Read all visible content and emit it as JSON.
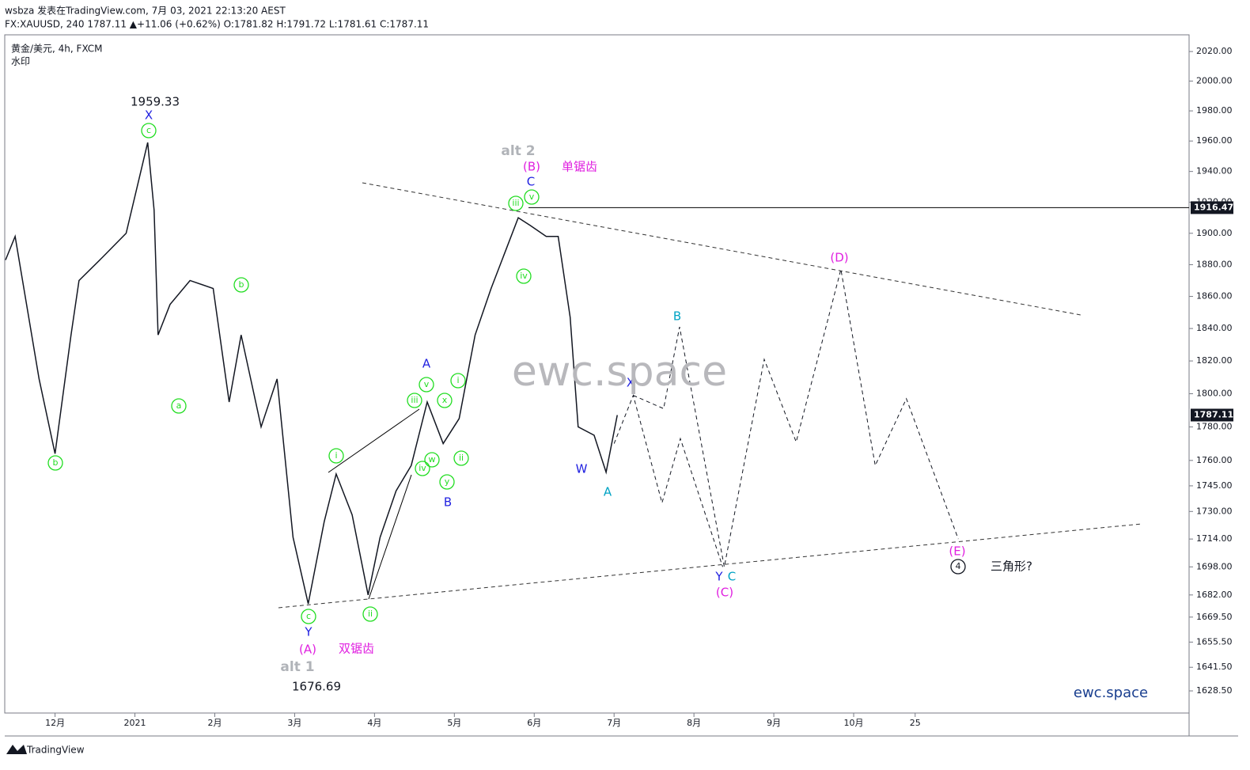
{
  "header": {
    "line1": "wsbza 发表在TradingView.com, 7月 03, 2021 22:13:20 AEST",
    "line2": "FX:XAUUSD, 240 1787.11 ▲+11.06 (+0.62%) O:1781.82 H:1791.72 L:1781.61 C:1787.11",
    "symbol": "黄金/美元, 4h, FXCM",
    "watermark_label": "水印"
  },
  "footer": {
    "brand": "TradingView"
  },
  "chart_data": {
    "type": "line",
    "log_scale": true,
    "grid": false,
    "ylim": [
      1616.4,
      2031.4
    ],
    "yticks": [
      {
        "value": 2020,
        "label": "2020.00"
      },
      {
        "value": 2000,
        "label": "2000.00"
      },
      {
        "value": 1980,
        "label": "1980.00"
      },
      {
        "value": 1960,
        "label": "1960.00"
      },
      {
        "value": 1940,
        "label": "1940.00"
      },
      {
        "value": 1920,
        "label": "1920.00"
      },
      {
        "value": 1900,
        "label": "1900.00"
      },
      {
        "value": 1880,
        "label": "1880.00"
      },
      {
        "value": 1860,
        "label": "1860.00"
      },
      {
        "value": 1840,
        "label": "1840.00"
      },
      {
        "value": 1820,
        "label": "1820.00"
      },
      {
        "value": 1800,
        "label": "1800.00"
      },
      {
        "value": 1780,
        "label": "1780.00"
      },
      {
        "value": 1760,
        "label": "1760.00"
      },
      {
        "value": 1745,
        "label": "1745.00"
      },
      {
        "value": 1730,
        "label": "1730.00"
      },
      {
        "value": 1714,
        "label": "1714.00"
      },
      {
        "value": 1698,
        "label": "1698.00"
      },
      {
        "value": 1682,
        "label": "1682.00"
      },
      {
        "value": 1669.5,
        "label": "1669.50"
      },
      {
        "value": 1655.5,
        "label": "1655.50"
      },
      {
        "value": 1641.5,
        "label": "1641.50"
      },
      {
        "value": 1628.5,
        "label": "1628.50"
      }
    ],
    "xlim": [
      11.37,
      26.2
    ],
    "xticks": [
      {
        "value": 12,
        "label": "12月"
      },
      {
        "value": 13,
        "label": "2021"
      },
      {
        "value": 14,
        "label": "2月"
      },
      {
        "value": 15,
        "label": "3月"
      },
      {
        "value": 16,
        "label": "4月"
      },
      {
        "value": 17,
        "label": "5月"
      },
      {
        "value": 18,
        "label": "6月"
      },
      {
        "value": 19,
        "label": "7月"
      },
      {
        "value": 20,
        "label": "8月"
      },
      {
        "value": 21,
        "label": "9月"
      },
      {
        "value": 22,
        "label": "10月"
      },
      {
        "value": 22.77,
        "label": "25"
      }
    ],
    "series": [
      {
        "color": "#131722",
        "dash": false,
        "x": [
          11.38,
          11.5,
          11.8,
          12.0,
          12.2,
          12.3,
          12.6,
          12.89,
          13.16,
          13.24,
          13.29,
          13.44,
          13.69,
          13.98,
          14.18,
          14.33,
          14.58,
          14.78,
          14.98,
          15.17,
          15.37,
          15.52,
          15.72,
          15.92,
          16.07,
          16.27,
          16.46,
          16.66,
          16.86,
          17.06,
          17.26,
          17.46,
          17.65,
          17.8,
          17.95,
          18.15,
          18.3,
          18.45,
          18.55,
          18.75,
          18.9,
          19.04
        ],
        "values": [
          1883,
          1898,
          1809,
          1764,
          1836,
          1870,
          1885,
          1900,
          1959,
          1915,
          1836,
          1855,
          1870,
          1865,
          1795,
          1836,
          1780,
          1809,
          1715,
          1677,
          1724,
          1752,
          1728,
          1682,
          1715,
          1742,
          1757,
          1795,
          1770,
          1785,
          1836,
          1865,
          1890,
          1910,
          1905,
          1898,
          1898,
          1847,
          1780,
          1775,
          1753,
          1787.11
        ]
      },
      {
        "color": "#131722",
        "dash": true,
        "x": [
          19.0,
          19.24,
          19.6,
          19.83,
          20.36
        ],
        "values": [
          1770,
          1799,
          1735,
          1773,
          1698
        ]
      },
      {
        "color": "#131722",
        "dash": true,
        "x": [
          19.24,
          19.62,
          19.82,
          20.38,
          20.88,
          21.28,
          21.84,
          22.27,
          22.66,
          23.31
        ],
        "values": [
          1799,
          1791,
          1841,
          1698,
          1821,
          1771,
          1877,
          1757,
          1797,
          1714
        ]
      }
    ],
    "hline": {
      "value": 1916.47
    },
    "last_price": 1787.11,
    "annotations": [
      {
        "text": "b",
        "color": "#22dd22",
        "circled": true
      },
      {
        "text": "c",
        "color": "#22dd22",
        "circled": true
      },
      {
        "text": "b",
        "color": "#22dd22",
        "circled": true
      },
      {
        "text": "a",
        "color": "#22dd22",
        "circled": true
      },
      {
        "text": "c",
        "color": "#22dd22",
        "circled": true
      },
      {
        "text": "i",
        "color": "#22dd22",
        "circled": true
      },
      {
        "text": "ii",
        "color": "#22dd22",
        "circled": true
      },
      {
        "text": "iii",
        "color": "#22dd22",
        "circled": true
      },
      {
        "text": "iv",
        "color": "#22dd22",
        "circled": true
      },
      {
        "text": "v",
        "color": "#22dd22",
        "circled": true
      },
      {
        "text": "w",
        "color": "#22dd22",
        "circled": true
      },
      {
        "text": "x",
        "color": "#22dd22",
        "circled": true
      },
      {
        "text": "y",
        "color": "#22dd22",
        "circled": true
      },
      {
        "text": "i",
        "color": "#22dd22",
        "circled": true
      },
      {
        "text": "ii",
        "color": "#22dd22",
        "circled": true
      },
      {
        "text": "iii",
        "color": "#22dd22",
        "circled": true
      },
      {
        "text": "iv",
        "color": "#22dd22",
        "circled": true
      },
      {
        "text": "v",
        "color": "#22dd22",
        "circled": true
      },
      {
        "text": "X",
        "color": "#1f1fe0",
        "circled": false
      },
      {
        "text": "Y",
        "color": "#1f1fe0",
        "circled": false
      },
      {
        "text": "A",
        "color": "#1f1fe0",
        "circled": false
      },
      {
        "text": "B",
        "color": "#1f1fe0",
        "circled": false
      },
      {
        "text": "C",
        "color": "#1f1fe0",
        "circled": false
      },
      {
        "text": "W",
        "color": "#1f1fe0",
        "circled": false
      },
      {
        "text": "X",
        "color": "#1f1fe0",
        "circled": false
      },
      {
        "text": "Y",
        "color": "#1f1fe0",
        "circled": false
      },
      {
        "text": "B",
        "color": "#00a3c4",
        "circled": false
      },
      {
        "text": "A",
        "color": "#00a3c4",
        "circled": false
      },
      {
        "text": "C",
        "color": "#00a3c4",
        "circled": false
      },
      {
        "text": "(A)",
        "color": "#e020e0",
        "circled": false
      },
      {
        "text": "(B)",
        "color": "#e020e0",
        "circled": false
      },
      {
        "text": "(C)",
        "color": "#e020e0",
        "circled": false
      },
      {
        "text": "(D)",
        "color": "#e020e0",
        "circled": false
      },
      {
        "text": "(E)",
        "color": "#e020e0",
        "circled": false
      },
      {
        "text": "双锯齿",
        "color": "#e020e0",
        "circled": false
      },
      {
        "text": "单锯齿",
        "color": "#e020e0",
        "circled": false
      },
      {
        "text": "alt 1",
        "color": "#b0b3b8",
        "circled": false
      },
      {
        "text": "alt 2",
        "color": "#b0b3b8",
        "circled": false
      },
      {
        "text": "1959.33",
        "color": "#131722",
        "circled": false
      },
      {
        "text": "1676.69",
        "color": "#131722",
        "circled": false
      },
      {
        "text": "4",
        "color": "#131722",
        "circled": true
      },
      {
        "text": "三角形?",
        "color": "#131722",
        "circled": false
      },
      {
        "text": "ewc.space",
        "color": "#b8b8bc",
        "circled": false
      },
      {
        "text": "ewc.space",
        "color": "#1a3f8f",
        "circled": false
      }
    ]
  }
}
